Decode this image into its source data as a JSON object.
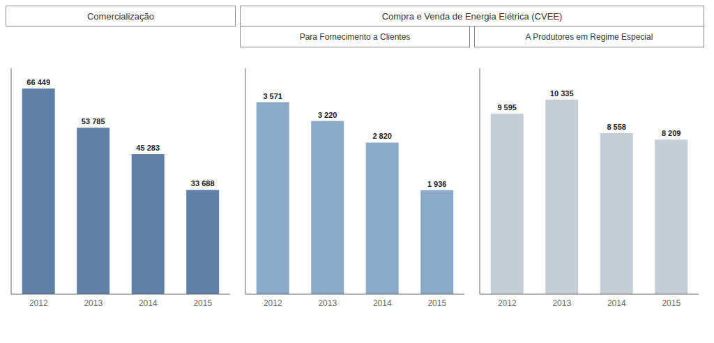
{
  "title": "Compra e Venda de Energia Elétrica (CVEE)",
  "chart_data": [
    {
      "type": "bar",
      "title": "Comercialização",
      "categories": [
        "2012",
        "2013",
        "2014",
        "2015"
      ],
      "values": [
        66449,
        53785,
        45283,
        33688
      ],
      "value_labels": [
        "66 449",
        "53 785",
        "45 283",
        "33 688"
      ],
      "color": "#6080a8",
      "ylim": [
        0,
        73000
      ],
      "data_labels": true,
      "tick_labels": "x",
      "grid": false
    },
    {
      "type": "bar",
      "title": "Para Fornecimento a Clientes",
      "categories": [
        "2012",
        "2013",
        "2014",
        "2015"
      ],
      "values": [
        3571,
        3220,
        2820,
        1936
      ],
      "value_labels": [
        "3 571",
        "3 220",
        "2 820",
        "1 936"
      ],
      "color": "#8aaac8",
      "ylim": [
        0,
        4200
      ],
      "data_labels": true,
      "tick_labels": "x",
      "grid": false
    },
    {
      "type": "bar",
      "title": "A Produtores em Regime Especial",
      "categories": [
        "2012",
        "2013",
        "2014",
        "2015"
      ],
      "values": [
        9595,
        10335,
        8558,
        8209
      ],
      "value_labels": [
        "9 595",
        "10 335",
        "8 558",
        "8 209"
      ],
      "color": "#c5cdd6",
      "ylim": [
        0,
        12000
      ],
      "data_labels": true,
      "tick_labels": "x",
      "grid": false
    }
  ]
}
